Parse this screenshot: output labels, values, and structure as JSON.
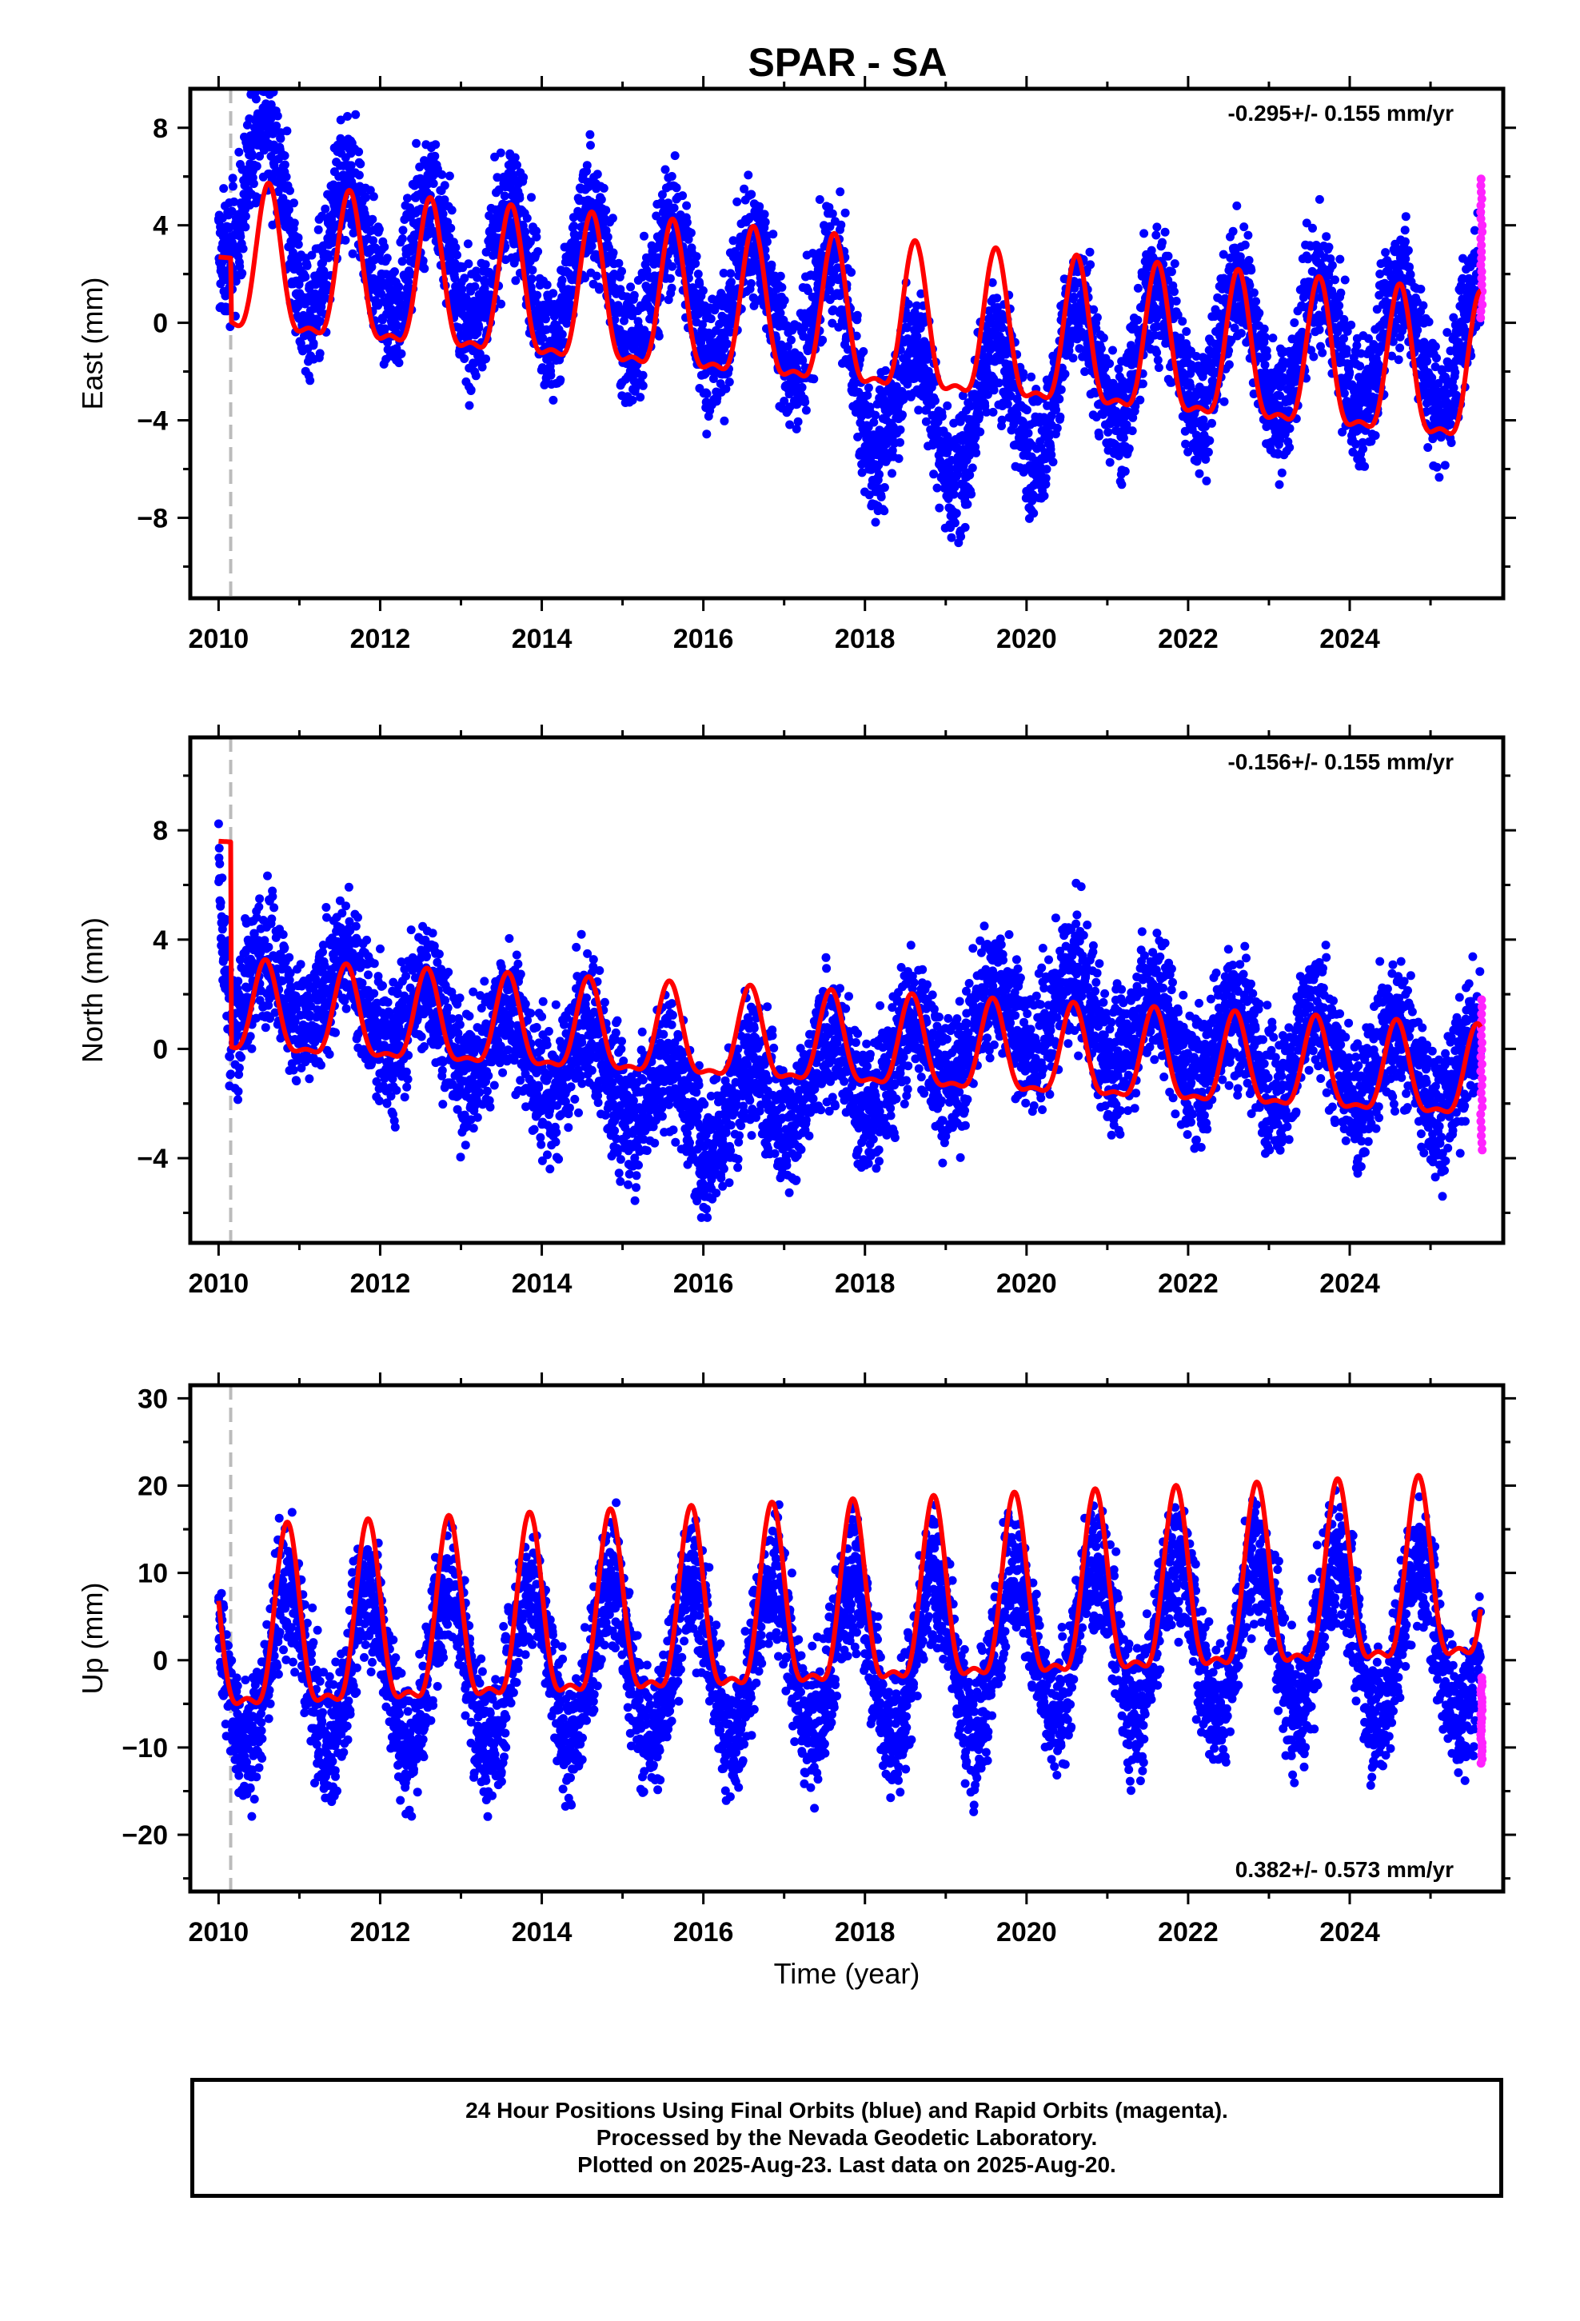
{
  "title": "SPAR - SA",
  "caption": {
    "line1": "24 Hour Positions Using Final Orbits (blue) and Rapid Orbits (magenta).",
    "line2": "Processed by the Nevada Geodetic Laboratory.",
    "line3": "Plotted on 2025-Aug-23. Last data on 2025-Aug-20."
  },
  "colors": {
    "final": "#0000ff",
    "rapid": "#ff22ff",
    "model": "#ff0000",
    "equipment_change": "#bbbbbb"
  },
  "chart_data": [
    {
      "type": "scatter",
      "component": "east",
      "ylabel": "East (mm)",
      "xlabel": "",
      "xlim": [
        2009.65,
        2025.9
      ],
      "ylim": [
        -11.3,
        9.6
      ],
      "xticks": [
        2010,
        2012,
        2014,
        2016,
        2018,
        2020,
        2022,
        2024
      ],
      "yticks": [
        8,
        4,
        0,
        -4,
        -8
      ],
      "ytick_labels": [
        "8",
        "4",
        "0",
        "−4",
        "−8"
      ],
      "rate_label": "-0.295+/- 0.155 mm/yr",
      "rate_position": "top-right",
      "equipment_change_year": 2010.15,
      "grid": false,
      "series": [
        {
          "name": "Final Orbits",
          "color": "#0000ff",
          "kind": "points"
        },
        {
          "name": "Rapid Orbits",
          "color": "#ff22ff",
          "kind": "points",
          "x_range": [
            2025.62,
            2025.64
          ],
          "y_range": [
            0.2,
            5.9
          ]
        },
        {
          "name": "Model",
          "color": "#ff0000",
          "kind": "line"
        }
      ],
      "model": {
        "start_year": 2010.0,
        "end_year": 2025.62,
        "start_value": 2.7,
        "rate_mm_per_yr": -0.295,
        "annual_amplitude_mm": 2.9,
        "annual_peak_year_fraction": 0.62,
        "step": {
          "year": 2010.15,
          "before": 2.7,
          "after": 2.0
        }
      },
      "scatter_envelope": [
        [
          2010.0,
          4.8
        ],
        [
          2010.5,
          6.5
        ],
        [
          2011.0,
          3.0
        ],
        [
          2012.0,
          3.0
        ],
        [
          2014.0,
          2.0
        ],
        [
          2016.0,
          1.2
        ],
        [
          2017.5,
          0.5
        ],
        [
          2018.0,
          -2.5
        ],
        [
          2019.0,
          -4.0
        ],
        [
          2020.0,
          -3.0
        ],
        [
          2021.0,
          -1.5
        ],
        [
          2022.0,
          -1.0
        ],
        [
          2023.0,
          -1.0
        ],
        [
          2025.6,
          -0.8
        ]
      ],
      "scatter_spread_mm": 1.6
    },
    {
      "type": "scatter",
      "component": "north",
      "ylabel": "North (mm)",
      "xlabel": "",
      "xlim": [
        2009.65,
        2025.9
      ],
      "ylim": [
        -7.1,
        11.4
      ],
      "xticks": [
        2010,
        2012,
        2014,
        2016,
        2018,
        2020,
        2022,
        2024
      ],
      "yticks": [
        8,
        4,
        0,
        -4
      ],
      "ytick_labels": [
        "8",
        "4",
        "0",
        "−4"
      ],
      "rate_label": "-0.156+/- 0.155 mm/yr",
      "rate_position": "top-right",
      "equipment_change_year": 2010.15,
      "grid": false,
      "series": [
        {
          "name": "Final Orbits",
          "color": "#0000ff",
          "kind": "points"
        },
        {
          "name": "Rapid Orbits",
          "color": "#ff22ff",
          "kind": "points",
          "x_range": [
            2025.62,
            2025.64
          ],
          "y_range": [
            -3.7,
            1.8
          ]
        },
        {
          "name": "Model",
          "color": "#ff0000",
          "kind": "line"
        }
      ],
      "model": {
        "start_year": 2010.0,
        "end_year": 2025.62,
        "start_value": 7.6,
        "rate_mm_per_yr": -0.156,
        "annual_amplitude_mm": 1.6,
        "annual_peak_year_fraction": 0.58,
        "step": {
          "year": 2010.15,
          "before": 7.6,
          "after": 1.2
        }
      },
      "scatter_envelope": [
        [
          2010.0,
          8.0
        ],
        [
          2010.15,
          2.0
        ],
        [
          2011.5,
          2.0
        ],
        [
          2013.0,
          0.5
        ],
        [
          2015.0,
          -1.0
        ],
        [
          2016.0,
          -2.5
        ],
        [
          2017.0,
          -1.5
        ],
        [
          2018.5,
          -0.5
        ],
        [
          2020.0,
          1.5
        ],
        [
          2021.0,
          1.0
        ],
        [
          2022.5,
          0.0
        ],
        [
          2025.6,
          -1.0
        ]
      ],
      "scatter_spread_mm": 1.5
    },
    {
      "type": "scatter",
      "component": "up",
      "ylabel": "Up (mm)",
      "xlabel": "Time (year)",
      "xlim": [
        2009.65,
        2025.9
      ],
      "ylim": [
        -26.5,
        31.5
      ],
      "xticks": [
        2010,
        2012,
        2014,
        2016,
        2018,
        2020,
        2022,
        2024
      ],
      "yticks": [
        30,
        20,
        10,
        0,
        -10,
        -20
      ],
      "ytick_labels": [
        "30",
        "20",
        "10",
        "0",
        "−10",
        "−20"
      ],
      "rate_label": "0.382+/- 0.573 mm/yr",
      "rate_position": "bottom-right",
      "equipment_change_year": 2010.15,
      "grid": false,
      "series": [
        {
          "name": "Final Orbits",
          "color": "#0000ff",
          "kind": "points"
        },
        {
          "name": "Rapid Orbits",
          "color": "#ff22ff",
          "kind": "points",
          "x_range": [
            2025.62,
            2025.64
          ],
          "y_range": [
            -11.8,
            -2.0
          ]
        },
        {
          "name": "Model",
          "color": "#ff0000",
          "kind": "line"
        }
      ],
      "model": {
        "start_year": 2010.0,
        "end_year": 2025.62,
        "start_value": 2.0,
        "rate_mm_per_yr": 0.382,
        "annual_amplitude_mm": 10.0,
        "annual_peak_year_fraction": 0.85,
        "step": null
      },
      "scatter_envelope": [
        [
          2010.0,
          -1.0
        ],
        [
          2013.0,
          -1.0
        ],
        [
          2016.0,
          0.0
        ],
        [
          2019.0,
          0.5
        ],
        [
          2021.0,
          2.5
        ],
        [
          2022.0,
          3.0
        ],
        [
          2025.6,
          2.0
        ]
      ],
      "scatter_spread_mm": 4.5
    }
  ]
}
